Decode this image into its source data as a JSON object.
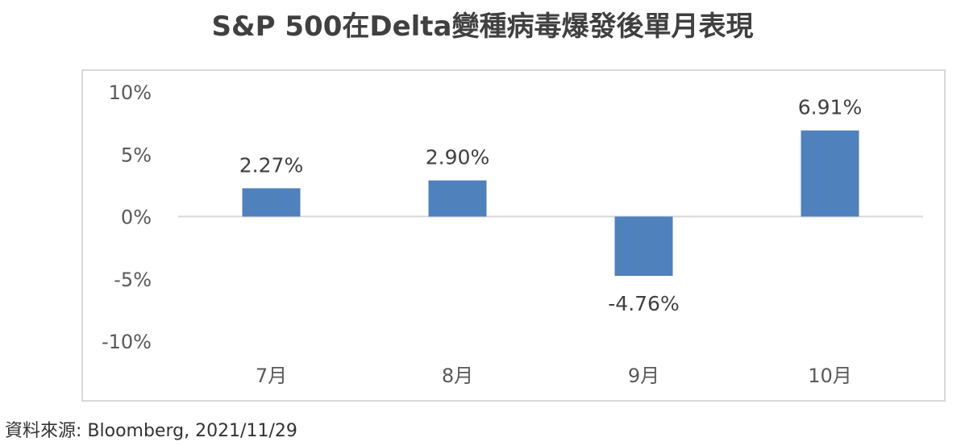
{
  "chart_data": {
    "type": "bar",
    "title": "S&P 500在Delta變種病毒爆發後單月表現",
    "categories": [
      "7月",
      "8月",
      "9月",
      "10月"
    ],
    "values": [
      2.27,
      2.9,
      -4.76,
      6.91
    ],
    "data_labels": [
      "2.27%",
      "2.90%",
      "-4.76%",
      "6.91%"
    ],
    "y_ticks": [
      10,
      5,
      0,
      -5,
      -10
    ],
    "y_tick_labels": [
      "10%",
      "5%",
      "0%",
      "-5%",
      "-10%"
    ],
    "ylim": [
      -10,
      10
    ],
    "bar_color": "#4f81bd",
    "axis_color": "#d9d9d9",
    "grid": false,
    "legend": "none",
    "xlabel": "",
    "ylabel": ""
  },
  "source": "資料來源: Bloomberg, 2021/11/29"
}
